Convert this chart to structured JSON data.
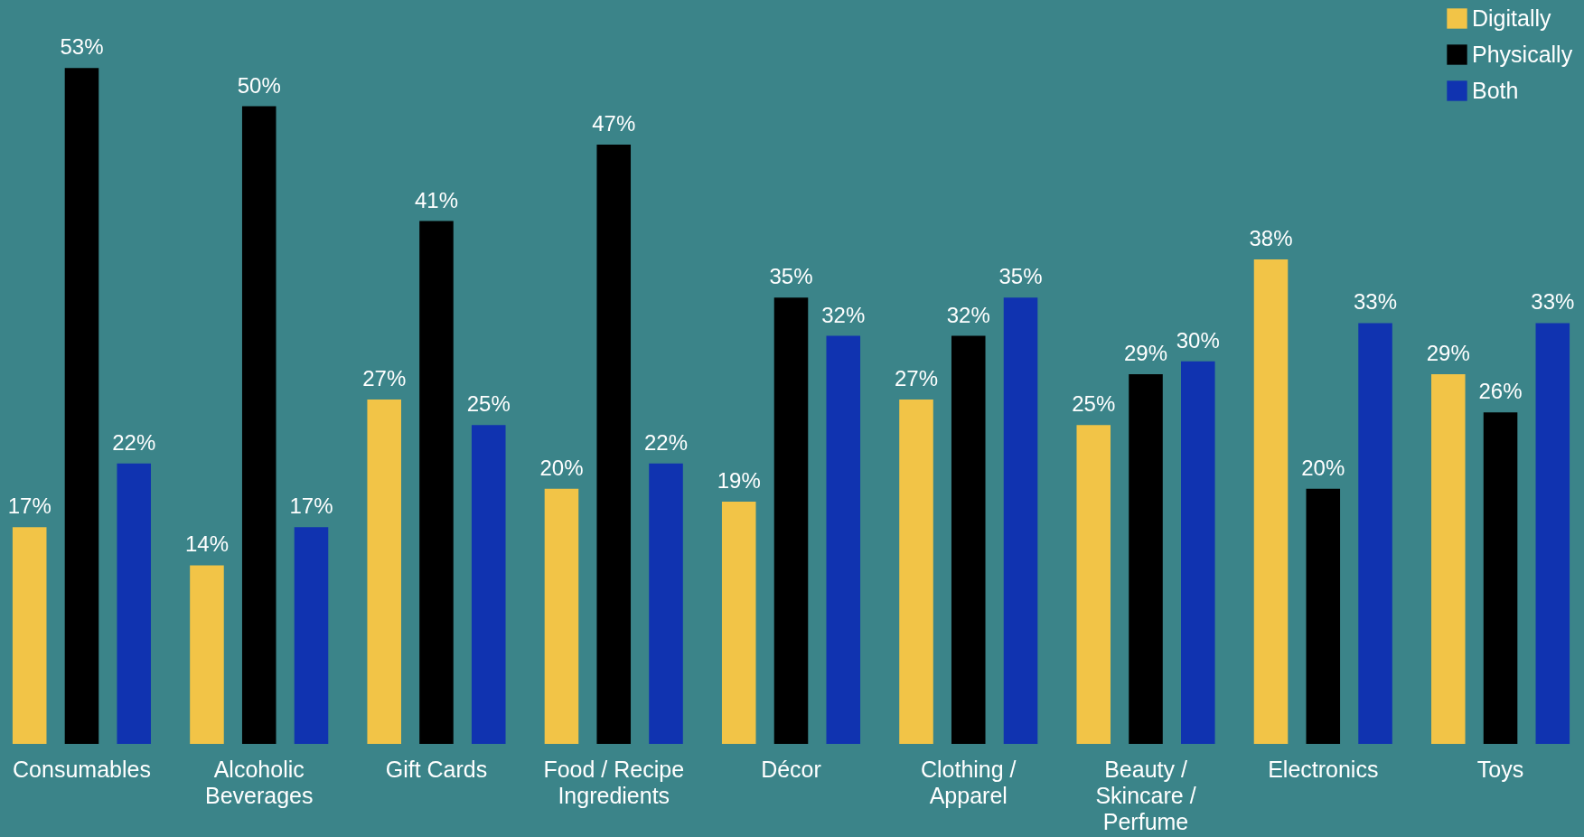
{
  "chart_data": {
    "type": "bar",
    "categories": [
      "Consumables",
      "Alcoholic Beverages",
      "Gift Cards",
      "Food / Recipe Ingredients",
      "Décor",
      "Clothing / Apparel",
      "Beauty / Skincare / Perfume",
      "Electronics",
      "Toys"
    ],
    "series": [
      {
        "name": "Digitally",
        "color": "#f2c447",
        "values": [
          17,
          14,
          27,
          20,
          19,
          27,
          25,
          38,
          29
        ],
        "value_labels": [
          "17%",
          "14%",
          "27%",
          "20%",
          "19%",
          "27%",
          "25%",
          "38%",
          "29%"
        ]
      },
      {
        "name": "Physically",
        "color": "#000000",
        "values": [
          53,
          50,
          41,
          47,
          35,
          32,
          29,
          20,
          26
        ],
        "value_labels": [
          "53%",
          "50%",
          "41%",
          "47%",
          "35%",
          "32%",
          "29%",
          "20%",
          "26%"
        ]
      },
      {
        "name": "Both",
        "color": "#1033b0",
        "values": [
          22,
          17,
          25,
          22,
          32,
          35,
          30,
          33,
          33
        ],
        "value_labels": [
          "22%",
          "17%",
          "25%",
          "22%",
          "32%",
          "35%",
          "30%",
          "33%",
          "33%"
        ]
      }
    ],
    "legend": "top right",
    "grid": false
  }
}
